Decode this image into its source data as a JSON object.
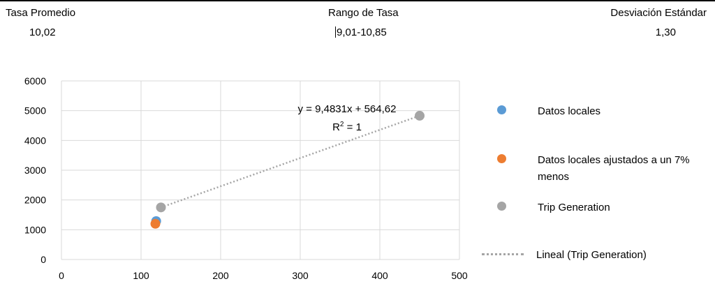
{
  "stats": {
    "avg_label": "Tasa Promedio",
    "avg_value": "10,02",
    "range_label": "Rango de Tasa",
    "range_value": "9,01-10,85",
    "std_label": "Desviación Estándar",
    "std_value": "1,30"
  },
  "chart_data": {
    "type": "scatter",
    "xlim": [
      0,
      500
    ],
    "ylim": [
      0,
      6000
    ],
    "x_ticks": [
      "0",
      "100",
      "200",
      "300",
      "400",
      "500"
    ],
    "y_ticks": [
      "0",
      "1000",
      "2000",
      "3000",
      "4000",
      "5000",
      "6000"
    ],
    "grid": true,
    "legend_position": "right",
    "series": [
      {
        "name": "Datos locales",
        "color": "#5b9bd5",
        "points": [
          [
            119,
            1290
          ]
        ]
      },
      {
        "name": "Datos locales ajustados a un 7% menos",
        "color": "#ed7d31",
        "points": [
          [
            118,
            1200
          ]
        ]
      },
      {
        "name": "Trip Generation",
        "color": "#a5a5a5",
        "points": [
          [
            125,
            1750
          ],
          [
            450,
            4830
          ]
        ]
      }
    ],
    "trendline": {
      "name": "Lineal (Trip Generation)",
      "color": "#a5a5a5",
      "style": "dotted",
      "from": [
        125,
        1750
      ],
      "to": [
        450,
        4830
      ],
      "equation": "y = 9,4831x + 564,62",
      "r2_base": "R",
      "r2_sup": "2",
      "r2_rest": " = 1"
    }
  }
}
